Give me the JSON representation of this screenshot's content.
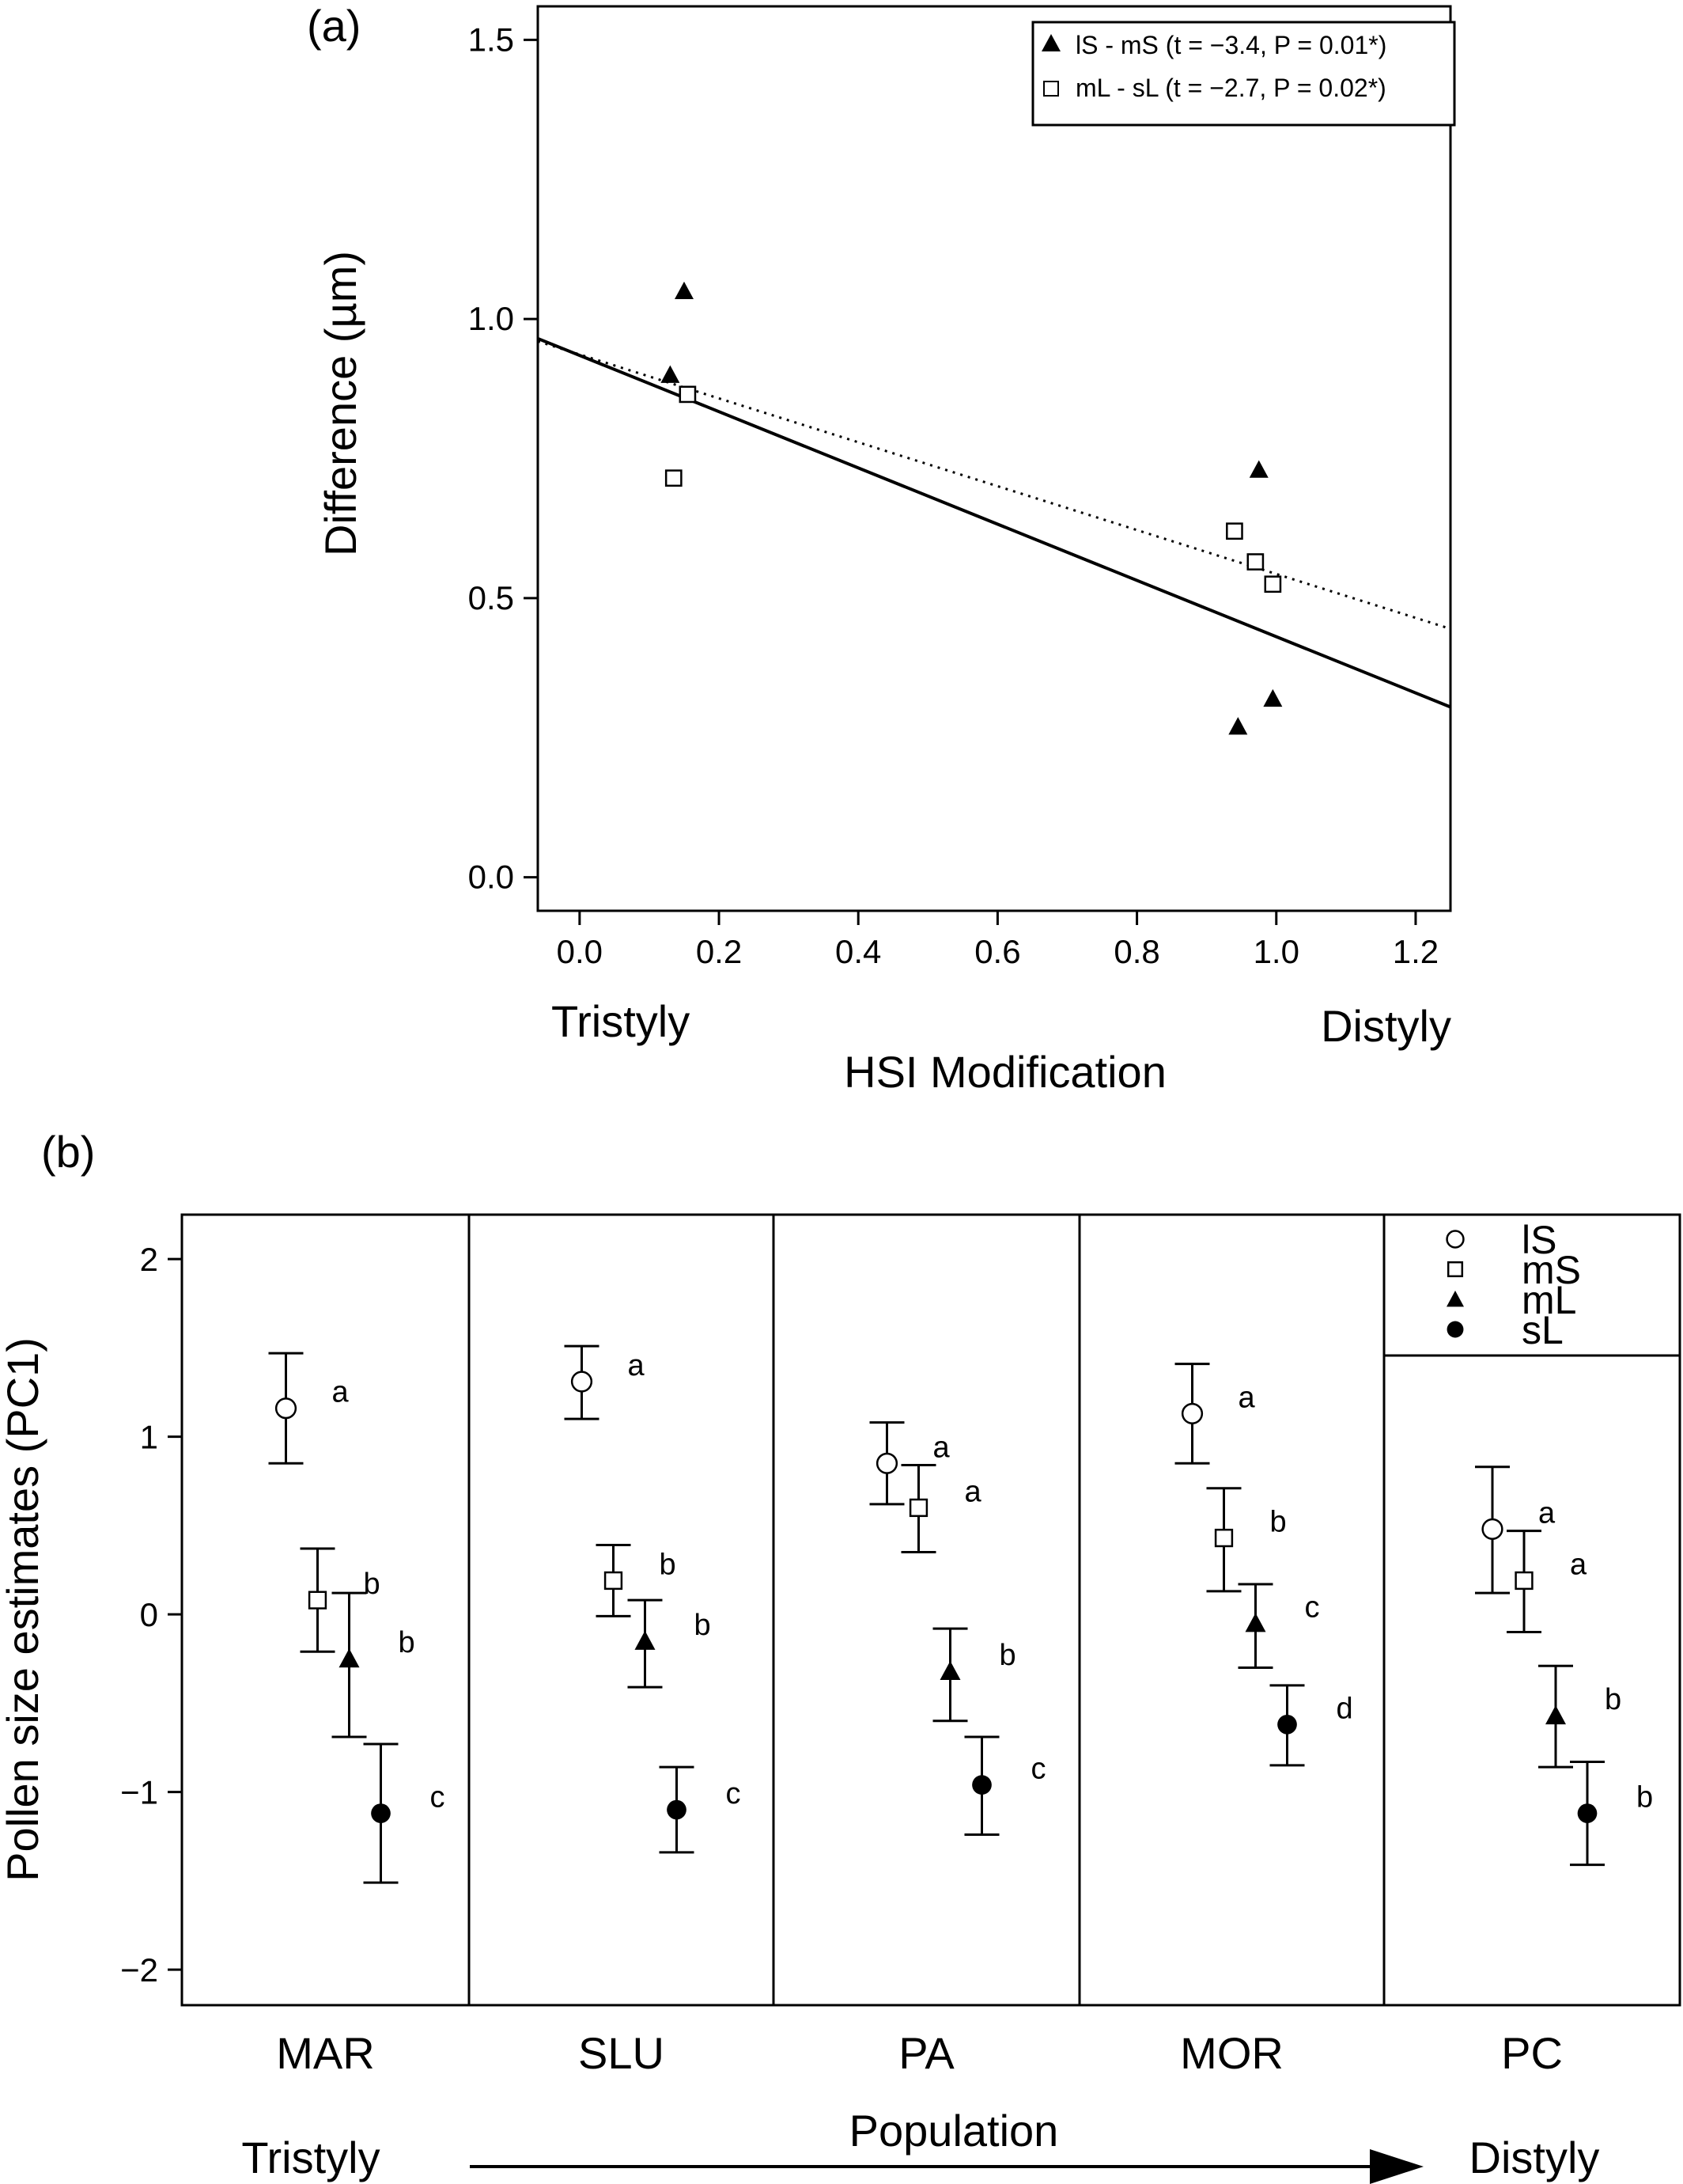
{
  "chart_data": [
    {
      "type": "scatter",
      "panel_label": "(a)",
      "xlabel": "HSI Modification",
      "ylabel": "Difference (µm)",
      "x_end_labels": [
        "Tristyly",
        "Distyly"
      ],
      "xlim": [
        -0.06,
        1.25
      ],
      "ylim": [
        -0.06,
        1.56
      ],
      "xticks": [
        0.0,
        0.2,
        0.4,
        0.6,
        0.8,
        1.0,
        1.2
      ],
      "xtick_labels": [
        "0.0",
        "0.2",
        "0.4",
        "0.6",
        "0.8",
        "1.0",
        "1.2"
      ],
      "yticks": [
        0.0,
        0.5,
        1.0,
        1.5
      ],
      "ytick_labels": [
        "0.0",
        "0.5",
        "1.0",
        "1.5"
      ],
      "legend_position": "top-right",
      "series": [
        {
          "name": "lS - mS (t = −3.4, P = 0.01*)",
          "marker": "filled-triangle",
          "line": "solid",
          "x": [
            0.13,
            0.15,
            0.945,
            0.975,
            0.995
          ],
          "y": [
            0.9,
            1.05,
            0.27,
            0.73,
            0.32
          ],
          "fit": [
            [
              -0.06,
              0.965
            ],
            [
              1.25,
              0.305
            ]
          ]
        },
        {
          "name": "mL - sL (t = −2.7, P = 0.02*)",
          "marker": "open-square",
          "line": "dotted",
          "x": [
            0.135,
            0.155,
            0.94,
            0.97,
            0.995
          ],
          "y": [
            0.715,
            0.865,
            0.62,
            0.565,
            0.525
          ],
          "fit": [
            [
              -0.06,
              0.96
            ],
            [
              1.25,
              0.445
            ]
          ]
        }
      ]
    },
    {
      "type": "scatter",
      "panel_label": "(b)",
      "xlabel": "Population",
      "ylabel": "Pollen size estimates (PC1)",
      "x_end_labels": [
        "Tristyly",
        "Distyly"
      ],
      "categories": [
        "MAR",
        "SLU",
        "PA",
        "MOR",
        "PC"
      ],
      "ylim": [
        -2.2,
        2.25
      ],
      "yticks": [
        -2,
        -1,
        0,
        1,
        2
      ],
      "ytick_labels": [
        "−2",
        "−1",
        "0",
        "1",
        "2"
      ],
      "legend_position": "top-right",
      "series": [
        {
          "name": "lS",
          "marker": "open-circle",
          "values": [
            1.16,
            1.31,
            0.85,
            1.13,
            0.48
          ],
          "error_low": [
            0.85,
            1.1,
            0.62,
            0.85,
            0.12
          ],
          "error_high": [
            1.47,
            1.51,
            1.08,
            1.41,
            0.83
          ],
          "letters": [
            "a",
            "a",
            "a",
            "a",
            "a"
          ]
        },
        {
          "name": "mS",
          "marker": "open-square",
          "values": [
            0.08,
            0.19,
            0.6,
            0.43,
            0.19
          ],
          "error_low": [
            -0.21,
            -0.01,
            0.35,
            0.13,
            -0.1
          ],
          "error_high": [
            0.37,
            0.39,
            0.84,
            0.71,
            0.47
          ],
          "letters": [
            "b",
            "b",
            "a",
            "b",
            "a"
          ]
        },
        {
          "name": "mL",
          "marker": "filled-triangle",
          "values": [
            -0.25,
            -0.15,
            -0.32,
            -0.05,
            -0.57
          ],
          "error_low": [
            -0.69,
            -0.41,
            -0.6,
            -0.3,
            -0.86
          ],
          "error_high": [
            0.12,
            0.08,
            -0.08,
            0.17,
            -0.29
          ],
          "letters": [
            "b",
            "b",
            "b",
            "c",
            "b"
          ]
        },
        {
          "name": "sL",
          "marker": "filled-circle",
          "values": [
            -1.12,
            -1.1,
            -0.96,
            -0.62,
            -1.12
          ],
          "error_low": [
            -1.51,
            -1.34,
            -1.24,
            -0.85,
            -1.41
          ],
          "error_high": [
            -0.73,
            -0.86,
            -0.69,
            -0.4,
            -0.83
          ],
          "letters": [
            "c",
            "c",
            "c",
            "d",
            "b"
          ]
        }
      ]
    }
  ]
}
